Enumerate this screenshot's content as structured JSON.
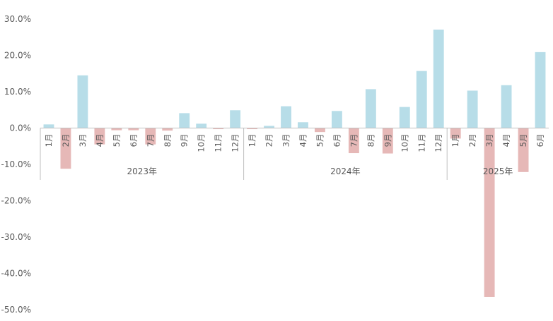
{
  "chart_data": {
    "type": "bar",
    "title": "",
    "xlabel": "",
    "ylabel": "",
    "ylim": [
      -0.5,
      0.3
    ],
    "yticks": [
      0.3,
      0.2,
      0.1,
      0.0,
      -0.1,
      -0.2,
      -0.3,
      -0.4,
      -0.5
    ],
    "ytick_labels": [
      "30.0%",
      "20.0%",
      "10.0%",
      "0.0%",
      "-10.0%",
      "-20.0%",
      "-30.0%",
      "-40.0%",
      "-50.0%"
    ],
    "grid": false,
    "legend": "none",
    "colors": {
      "positive": "#b7dde8",
      "negative": "#e6b8b7",
      "axis": "#bfbfbf",
      "text": "#595959"
    },
    "groups": [
      {
        "label": "2023年",
        "count": 12
      },
      {
        "label": "2024年",
        "count": 12
      },
      {
        "label": "2025年",
        "count": 6
      }
    ],
    "categories": [
      "1月",
      "2月",
      "3月",
      "4月",
      "5月",
      "6月",
      "7月",
      "8月",
      "9月",
      "10月",
      "11月",
      "12月",
      "1月",
      "2月",
      "3月",
      "4月",
      "5月",
      "6月",
      "7月",
      "8月",
      "9月",
      "10月",
      "11月",
      "12月",
      "1月",
      "2月",
      "3月",
      "4月",
      "5月",
      "6月"
    ],
    "values": [
      0.01,
      -0.112,
      0.145,
      -0.045,
      -0.006,
      -0.006,
      -0.045,
      -0.007,
      0.041,
      0.012,
      -0.003,
      0.049,
      -0.003,
      0.006,
      0.06,
      0.016,
      -0.011,
      0.047,
      -0.069,
      0.107,
      -0.07,
      0.058,
      0.157,
      0.271,
      -0.029,
      0.103,
      -0.465,
      0.118,
      -0.121,
      0.209
    ]
  }
}
